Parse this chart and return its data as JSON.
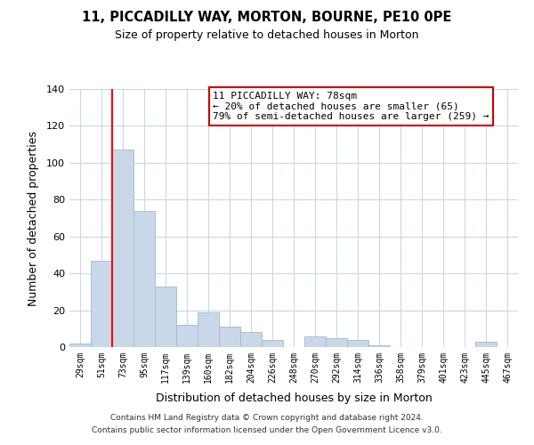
{
  "title": "11, PICCADILLY WAY, MORTON, BOURNE, PE10 0PE",
  "subtitle": "Size of property relative to detached houses in Morton",
  "xlabel": "Distribution of detached houses by size in Morton",
  "ylabel": "Number of detached properties",
  "categories": [
    "29sqm",
    "51sqm",
    "73sqm",
    "95sqm",
    "117sqm",
    "139sqm",
    "160sqm",
    "182sqm",
    "204sqm",
    "226sqm",
    "248sqm",
    "270sqm",
    "292sqm",
    "314sqm",
    "336sqm",
    "358sqm",
    "379sqm",
    "401sqm",
    "423sqm",
    "445sqm",
    "467sqm"
  ],
  "values": [
    2,
    47,
    107,
    74,
    33,
    12,
    19,
    11,
    8,
    4,
    0,
    6,
    5,
    4,
    1,
    0,
    0,
    0,
    0,
    3,
    0
  ],
  "bar_color": "#c8d8e8",
  "bar_edgecolor": "#a0b8d0",
  "red_line_index": 2,
  "ylim": [
    0,
    140
  ],
  "yticks": [
    0,
    20,
    40,
    60,
    80,
    100,
    120,
    140
  ],
  "annotation_title": "11 PICCADILLY WAY: 78sqm",
  "annotation_line1": "← 20% of detached houses are smaller (65)",
  "annotation_line2": "79% of semi-detached houses are larger (259) →",
  "annotation_box_color": "#ffffff",
  "annotation_box_edgecolor": "#cc0000",
  "footer_line1": "Contains HM Land Registry data © Crown copyright and database right 2024.",
  "footer_line2": "Contains public sector information licensed under the Open Government Licence v3.0.",
  "background_color": "#ffffff",
  "grid_color": "#c8d8e8"
}
